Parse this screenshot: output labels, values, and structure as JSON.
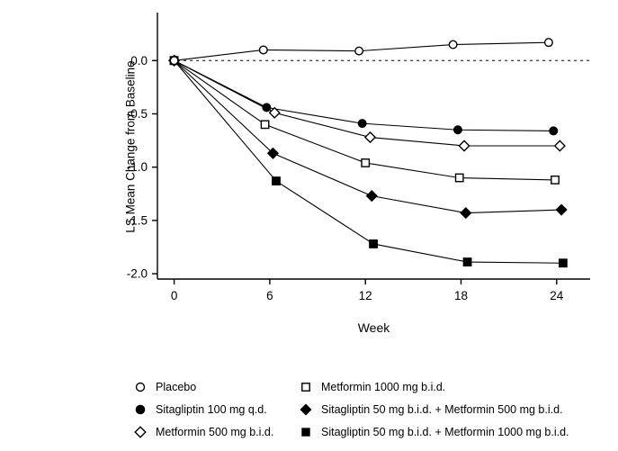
{
  "chart_data": {
    "type": "line",
    "title": "",
    "xlabel": "Week",
    "ylabel": "LS Mean Change from Baseline",
    "xlim": [
      -1.05,
      26.1
    ],
    "ylim": [
      -2.05,
      0.45
    ],
    "x_ticks": [
      0,
      6,
      12,
      18,
      24
    ],
    "y_ticks": [
      0.0,
      -0.5,
      -1.0,
      -1.5,
      -2.0
    ],
    "y_tick_labels": [
      "0.0",
      "-0.5",
      "-1.0",
      "-1.5",
      "-2.0"
    ],
    "zero_reference_line": 0.0,
    "grid": false,
    "legend_position": "bottom",
    "legend_columns": 2,
    "line_color": "#000000",
    "background_color": "#ffffff",
    "series": [
      {
        "name": "Placebo",
        "marker": "circle-open",
        "x": [
          0,
          5.6,
          11.6,
          17.5,
          23.5
        ],
        "y": [
          0.0,
          0.1,
          0.09,
          0.15,
          0.17
        ]
      },
      {
        "name": "Sitagliptin 100 mg q.d.",
        "marker": "circle-filled",
        "x": [
          0,
          5.8,
          11.8,
          17.8,
          23.8
        ],
        "y": [
          0.0,
          -0.44,
          -0.59,
          -0.65,
          -0.66
        ]
      },
      {
        "name": "Metformin 500 mg b.i.d.",
        "marker": "diamond-open",
        "x": [
          0,
          6.3,
          12.3,
          18.2,
          24.2
        ],
        "y": [
          0.0,
          -0.49,
          -0.72,
          -0.8,
          -0.8
        ]
      },
      {
        "name": "Metformin 1000 mg b.i.d.",
        "marker": "square-open",
        "x": [
          0,
          5.7,
          12.0,
          17.9,
          23.9
        ],
        "y": [
          0.0,
          -0.6,
          -0.96,
          -1.1,
          -1.12
        ]
      },
      {
        "name": "Sitagliptin 50 mg b.i.d. + Metformin 500 mg b.i.d.",
        "marker": "diamond-filled",
        "x": [
          0,
          6.2,
          12.4,
          18.3,
          24.3
        ],
        "y": [
          0.0,
          -0.87,
          -1.27,
          -1.43,
          -1.4
        ]
      },
      {
        "name": "Sitagliptin 50 mg b.i.d. + Metformin 1000 mg b.i.d.",
        "marker": "square-filled",
        "x": [
          0,
          6.4,
          12.5,
          18.4,
          24.4
        ],
        "y": [
          0.0,
          -1.13,
          -1.72,
          -1.89,
          -1.9
        ]
      }
    ]
  }
}
